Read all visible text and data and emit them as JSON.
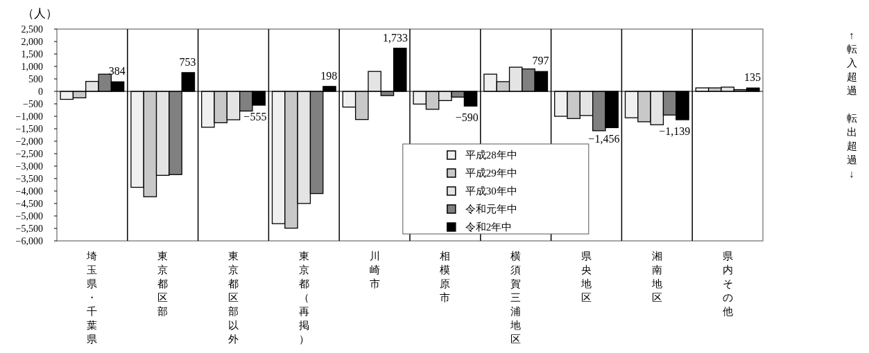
{
  "chart_data": {
    "type": "bar",
    "ylabel": "（人）",
    "categories": [
      "埼玉県・千葉県",
      "東京都区部",
      "東京都区部以外",
      "東京都（再掲）",
      "川崎市",
      "相模原市",
      "横須賀三浦地区",
      "県央地区",
      "湘南地区",
      "県内その他"
    ],
    "series": [
      {
        "name": "平成28年中",
        "color": "#f0f0f0",
        "values": [
          -320,
          -3850,
          -1440,
          -5310,
          -630,
          -510,
          690,
          -1000,
          -1060,
          140
        ]
      },
      {
        "name": "平成29年中",
        "color": "#c8c8c8",
        "values": [
          -260,
          -4230,
          -1260,
          -5490,
          -1130,
          -720,
          390,
          -1090,
          -1220,
          140
        ]
      },
      {
        "name": "平成30年中",
        "color": "#e4e4e4",
        "values": [
          400,
          -3370,
          -1140,
          -4500,
          800,
          -370,
          970,
          -970,
          -1340,
          170
        ]
      },
      {
        "name": "令和元年中",
        "color": "#808080",
        "values": [
          690,
          -3340,
          -790,
          -4100,
          -170,
          -230,
          900,
          -1580,
          -950,
          70
        ]
      },
      {
        "name": "令和2年中",
        "color": "#000000",
        "values": [
          384,
          753,
          -555,
          198,
          1733,
          -590,
          797,
          -1456,
          -1139,
          135
        ],
        "value_labels": [
          "384",
          "753",
          "−555",
          "198",
          "1,733",
          "−590",
          "797",
          "−1,456",
          "−1,139",
          "135"
        ]
      }
    ],
    "ylim": [
      -6000,
      2500
    ],
    "yticks": [
      {
        "value": 2500,
        "label": "2,500"
      },
      {
        "value": 2000,
        "label": "2,000"
      },
      {
        "value": 1500,
        "label": "1,500"
      },
      {
        "value": 1000,
        "label": "1,000"
      },
      {
        "value": 500,
        "label": "500"
      },
      0,
      {
        "value": -500,
        "label": "−500"
      },
      {
        "value": -1000,
        "label": "−1,000"
      },
      {
        "value": -1500,
        "label": "−1,500"
      },
      {
        "value": -2000,
        "label": "−2,000"
      },
      {
        "value": -2500,
        "label": "−2,500"
      },
      {
        "value": -3000,
        "label": "−3,000"
      },
      {
        "value": -3500,
        "label": "−3,500"
      },
      {
        "value": -4000,
        "label": "−4,000"
      },
      {
        "value": -4500,
        "label": "−4,500"
      },
      {
        "value": -5000,
        "label": "−5,000"
      },
      {
        "value": -5500,
        "label": "−5,500"
      },
      {
        "value": -6000,
        "label": "−6,000"
      }
    ],
    "legend": "bottom",
    "annotations": [
      "↑転入超過",
      "転出超過↓"
    ]
  }
}
